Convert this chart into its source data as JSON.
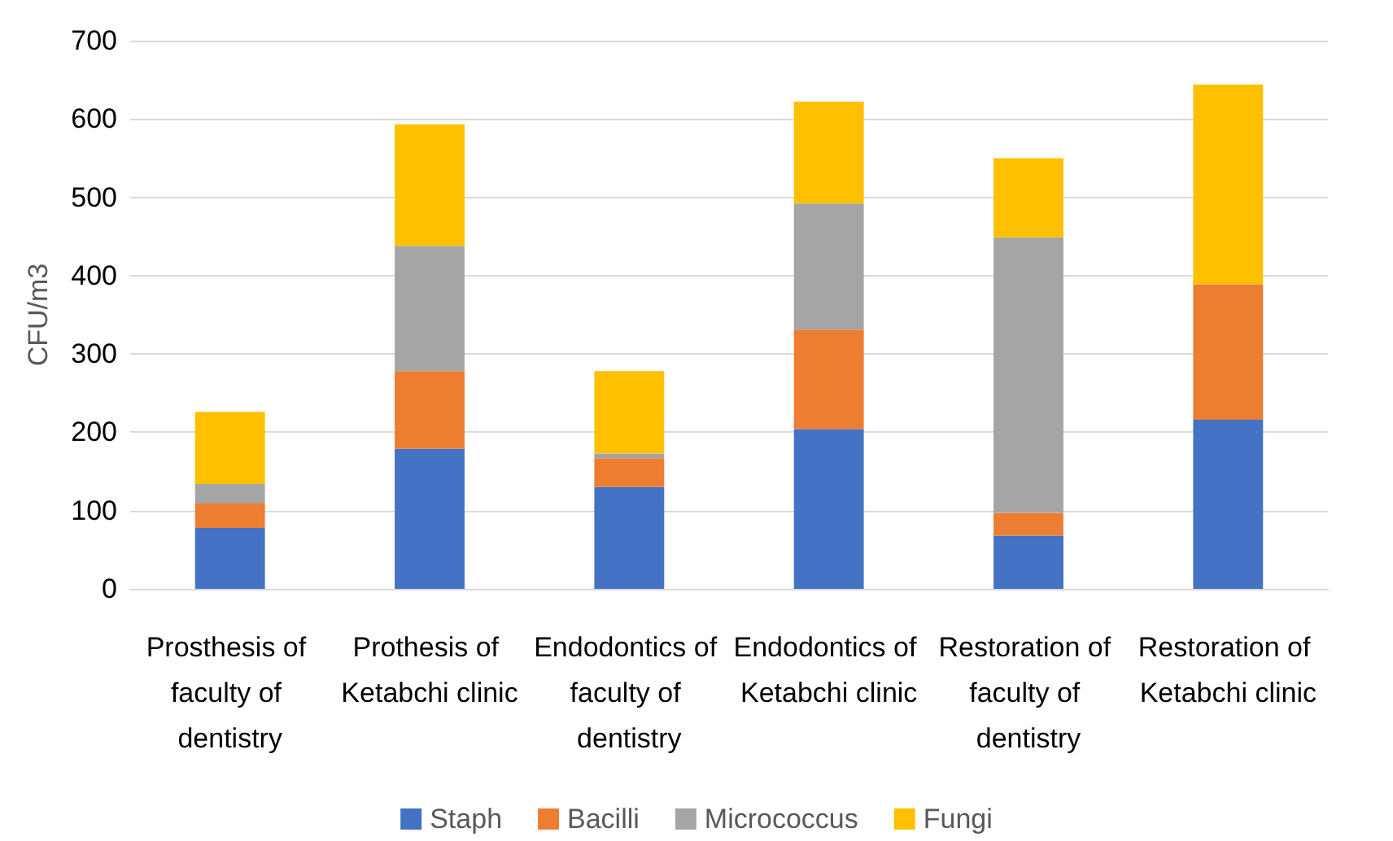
{
  "chart_data": {
    "type": "bar",
    "stacked": true,
    "ylabel": "CFU/m3",
    "categories": [
      "Prosthesis of faculty of dentistry",
      "Prothesis of Ketabchi clinic",
      "Endodontics of faculty of dentistry",
      "Endodontics of Ketabchi clinic",
      "Restoration of faculty of dentistry",
      "Restoration of Ketabchi clinic"
    ],
    "series": [
      {
        "name": "Staph",
        "color": "#4472c4",
        "values": [
          78,
          179,
          130,
          204,
          68,
          216
        ]
      },
      {
        "name": "Bacilli",
        "color": "#ed7d31",
        "values": [
          31,
          99,
          37,
          127,
          29,
          173
        ]
      },
      {
        "name": "Micrococcus",
        "color": "#a5a5a5",
        "values": [
          25,
          160,
          6,
          161,
          352,
          0
        ]
      },
      {
        "name": "Fungi",
        "color": "#ffc000",
        "values": [
          92,
          155,
          105,
          130,
          101,
          255
        ]
      }
    ],
    "ylim": [
      0,
      700
    ],
    "yticks": [
      0,
      100,
      200,
      300,
      400,
      500,
      600,
      700
    ],
    "grid": "y",
    "legend": "bottom"
  }
}
